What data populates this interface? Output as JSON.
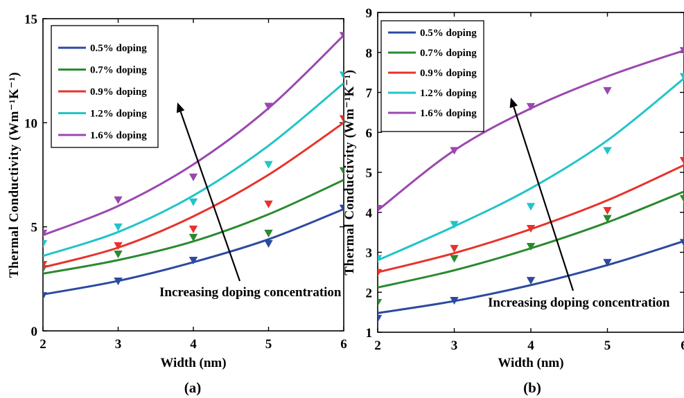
{
  "captions": [
    "(a)",
    "(b)"
  ],
  "colors": {
    "0.5% doping": "#2b4aa0",
    "0.7% doping": "#2a8a2e",
    "0.9% doping": "#e8322b",
    "1.2% doping": "#21c4c9",
    "1.6% doping": "#9b47b0"
  },
  "chart_data": [
    {
      "type": "scatter",
      "subtitle": "(a)",
      "xlabel": "Width (nm)",
      "ylabel": "Thermal Conductivity (Wm⁻¹K⁻¹)",
      "xlim": [
        2,
        6
      ],
      "ylim": [
        0,
        15
      ],
      "xticks": [
        "2",
        "3",
        "4",
        "5",
        "6"
      ],
      "yticks": [
        "0",
        "5",
        "10",
        "15"
      ],
      "legend_position": "top-left",
      "annotation": "Increasing doping concentration",
      "x": [
        2,
        3,
        4,
        5,
        6
      ],
      "series": [
        {
          "name": "0.5% doping",
          "values": [
            1.7,
            2.4,
            3.4,
            4.2,
            5.9
          ],
          "fit": [
            1.75,
            2.4,
            3.3,
            4.4,
            5.85
          ]
        },
        {
          "name": "0.7% doping",
          "values": [
            3.0,
            3.7,
            4.5,
            4.7,
            7.7
          ],
          "fit": [
            2.75,
            3.4,
            4.3,
            5.6,
            7.25
          ]
        },
        {
          "name": "0.9% doping",
          "values": [
            3.2,
            4.1,
            4.9,
            6.1,
            10.2
          ],
          "fit": [
            3.05,
            4.0,
            5.5,
            7.5,
            10.0
          ]
        },
        {
          "name": "1.2% doping",
          "values": [
            4.2,
            5.0,
            6.2,
            8.0,
            12.3
          ],
          "fit": [
            3.6,
            4.75,
            6.5,
            8.9,
            11.9
          ]
        },
        {
          "name": "1.6% doping",
          "values": [
            4.7,
            6.3,
            7.4,
            10.8,
            14.2
          ],
          "fit": [
            4.6,
            6.0,
            8.0,
            10.7,
            14.2
          ]
        }
      ]
    },
    {
      "type": "scatter",
      "subtitle": "(b)",
      "xlabel": "Width (nm)",
      "ylabel": "Thermal Conductivity (Wm⁻¹K⁻¹)",
      "xlim": [
        2,
        6
      ],
      "ylim": [
        1,
        9
      ],
      "xticks": [
        "2",
        "3",
        "4",
        "5",
        "6"
      ],
      "yticks": [
        "1",
        "2",
        "3",
        "4",
        "5",
        "6",
        "7",
        "8",
        "9"
      ],
      "legend_position": "top-left",
      "annotation": "Increasing doping concentration",
      "x": [
        2,
        3,
        4,
        5,
        6
      ],
      "series": [
        {
          "name": "0.5% doping",
          "values": [
            1.35,
            1.8,
            2.3,
            2.75,
            3.25
          ],
          "fit": [
            1.48,
            1.78,
            2.18,
            2.68,
            3.28
          ]
        },
        {
          "name": "0.7% doping",
          "values": [
            1.75,
            2.85,
            3.15,
            3.85,
            4.35
          ],
          "fit": [
            2.12,
            2.55,
            3.1,
            3.75,
            4.52
          ]
        },
        {
          "name": "0.9% doping",
          "values": [
            2.5,
            3.1,
            3.6,
            4.05,
            5.3
          ],
          "fit": [
            2.5,
            2.98,
            3.58,
            4.3,
            5.18
          ]
        },
        {
          "name": "1.2% doping",
          "values": [
            2.85,
            3.7,
            4.15,
            5.55,
            7.4
          ],
          "fit": [
            2.8,
            3.65,
            4.6,
            5.8,
            7.35
          ]
        },
        {
          "name": "1.6% doping",
          "values": [
            4.1,
            5.55,
            6.65,
            7.05,
            8.05
          ],
          "fit": [
            4.05,
            5.55,
            6.6,
            7.4,
            8.05
          ]
        }
      ]
    }
  ]
}
